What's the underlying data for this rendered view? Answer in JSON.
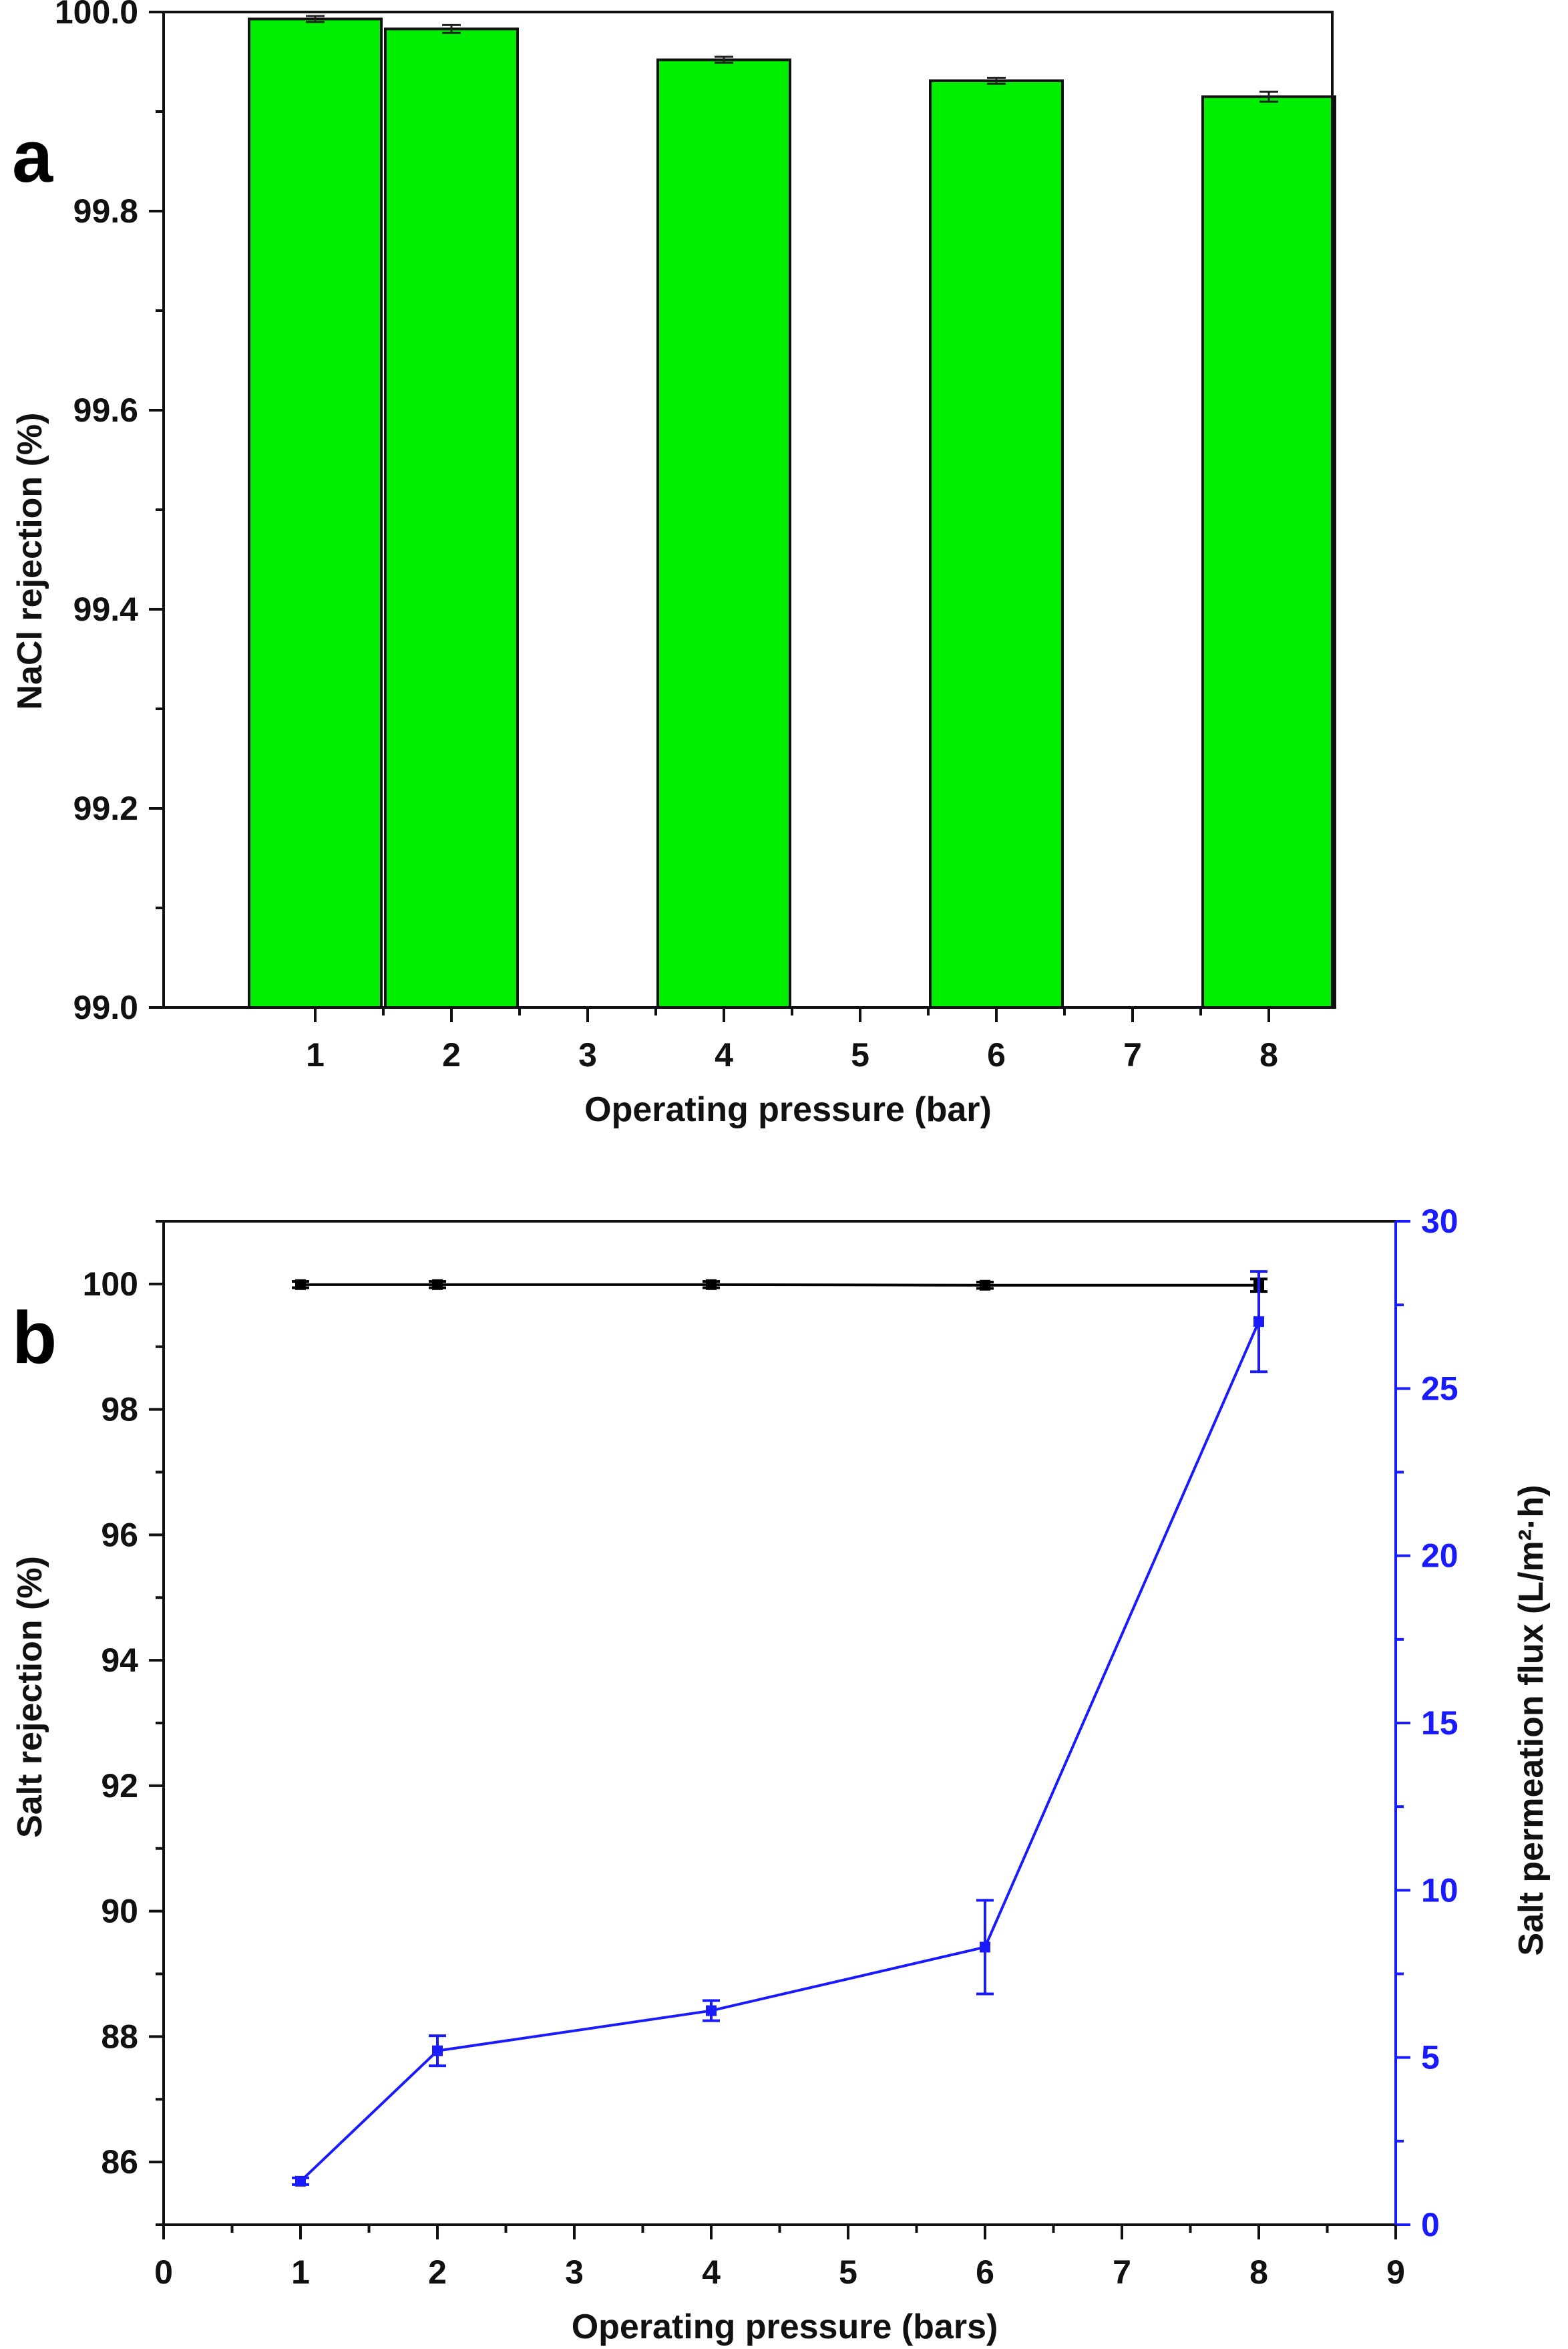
{
  "colors": {
    "bar_fill": "#00ee00",
    "axis": "#111111",
    "left_series": "#000000",
    "right_series": "#1a1aff"
  },
  "chart_data": [
    {
      "panel_label": "a",
      "type": "bar",
      "categories": [
        "1",
        "2",
        "3",
        "4",
        "5",
        "6",
        "7",
        "8"
      ],
      "values": [
        99.993,
        99.983,
        null,
        99.952,
        null,
        99.931,
        null,
        99.915
      ],
      "errors": [
        0.003,
        0.004,
        null,
        0.003,
        null,
        0.003,
        null,
        0.005
      ],
      "xlabel": "Operating pressure (bar)",
      "ylabel": "NaCl rejection (%)",
      "ylim": [
        99.0,
        100.0
      ],
      "yticks": [
        "99.0",
        "99.2",
        "99.4",
        "99.6",
        "99.8",
        "100.0"
      ],
      "grid": false
    },
    {
      "panel_label": "b",
      "type": "line",
      "x": [
        1,
        2,
        4,
        6,
        8
      ],
      "xlabel": "Operating pressure (bars)",
      "xticks": [
        "0",
        "1",
        "2",
        "3",
        "4",
        "5",
        "6",
        "7",
        "8",
        "9"
      ],
      "xlim": [
        0,
        9
      ],
      "grid": false,
      "series": [
        {
          "name": "Salt rejection",
          "axis": "left",
          "values": [
            99.99,
            99.99,
            99.99,
            99.98,
            99.98
          ],
          "errors": [
            0.05,
            0.05,
            0.05,
            0.05,
            0.1
          ]
        },
        {
          "name": "Salt permeation flux",
          "axis": "right",
          "values": [
            1.3,
            5.2,
            6.4,
            8.3,
            27.0
          ],
          "errors": [
            0.1,
            0.45,
            0.3,
            1.4,
            1.5
          ]
        }
      ],
      "ylabel_left": "Salt rejection (%)",
      "ylim_left": [
        85,
        101
      ],
      "yticks_left": [
        "86",
        "88",
        "90",
        "92",
        "94",
        "96",
        "98",
        "100"
      ],
      "ylabel_right": "Salt permeation flux (L/m²·h)",
      "ylim_right": [
        0,
        30
      ],
      "yticks_right": [
        "0",
        "5",
        "10",
        "15",
        "20",
        "25",
        "30"
      ]
    }
  ]
}
